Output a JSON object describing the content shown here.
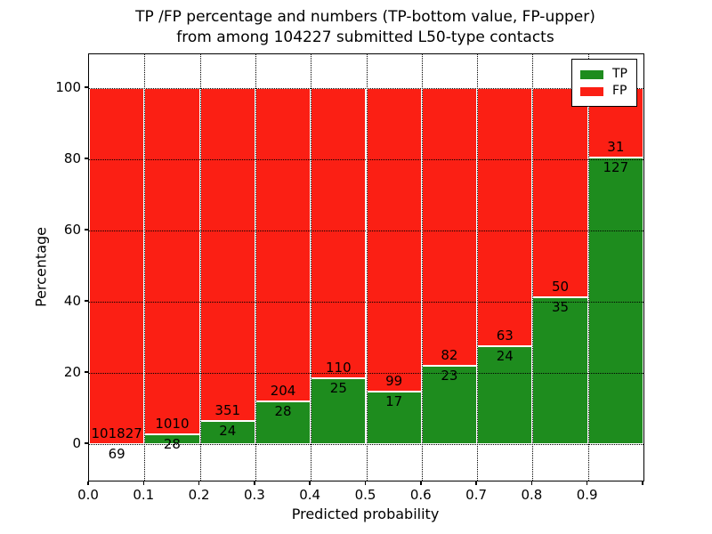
{
  "chart_data": {
    "type": "bar",
    "stacked": true,
    "title": "TP /FP percentage and numbers (TP-bottom value, FP-upper)",
    "subtitle": "from among 104227 submitted L50-type contacts",
    "xlabel": "Predicted probability",
    "ylabel": "Percentage",
    "xlim": [
      0,
      1
    ],
    "ylim": [
      -10.25,
      109.5
    ],
    "x_tick_labels": [
      "0.0",
      "0.1",
      "0.2",
      "0.3",
      "0.4",
      "0.5",
      "0.6",
      "0.7",
      "0.8",
      "0.9"
    ],
    "y_tick_values": [
      0,
      20,
      40,
      60,
      80,
      100
    ],
    "grid": "dotted",
    "categories": [
      "0.0-0.1",
      "0.1-0.2",
      "0.2-0.3",
      "0.3-0.4",
      "0.4-0.5",
      "0.5-0.6",
      "0.6-0.7",
      "0.7-0.8",
      "0.8-0.9",
      "0.9-1.0"
    ],
    "series": [
      {
        "name": "TP",
        "color": "#1e8c1e",
        "values": [
          69,
          28,
          24,
          28,
          25,
          17,
          23,
          24,
          35,
          127
        ]
      },
      {
        "name": "FP",
        "color": "#fb1f14",
        "values": [
          101827,
          1010,
          351,
          204,
          110,
          99,
          82,
          63,
          50,
          31
        ]
      }
    ],
    "value_display": "percent_of_bin_total",
    "legend": {
      "position": "upper-right",
      "entries": [
        {
          "label": "TP",
          "color": "#1e8c1e"
        },
        {
          "label": "FP",
          "color": "#fb1f14"
        }
      ]
    }
  },
  "colors": {
    "background": "#ffffff",
    "axis": "#000000",
    "grid": "#000000",
    "bar_edge": "#ffffff",
    "text": "#000000"
  }
}
